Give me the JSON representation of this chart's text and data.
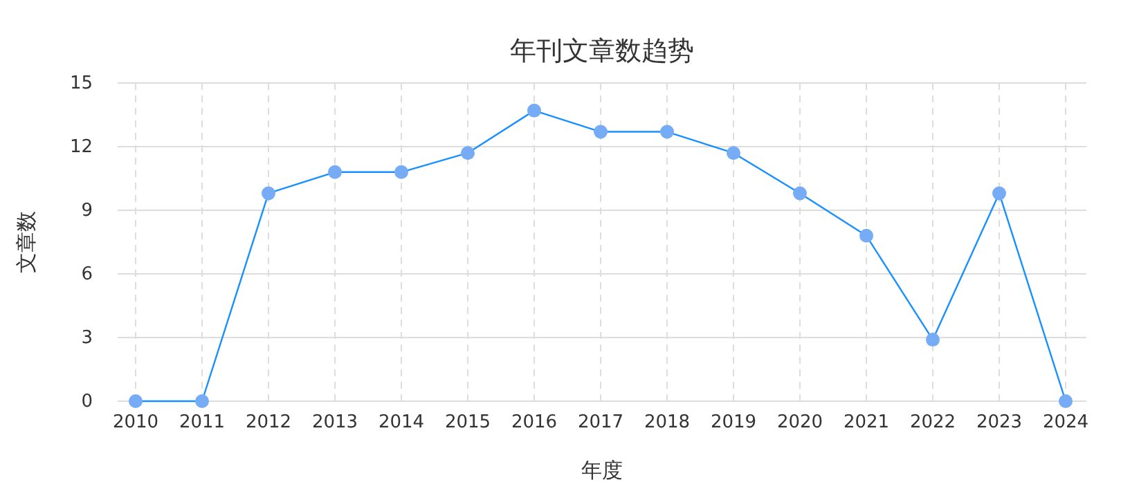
{
  "chart_data": {
    "type": "line",
    "title": "年刊文章数趋势",
    "xlabel": "年度",
    "ylabel": "文章数",
    "categories": [
      "2010",
      "2011",
      "2012",
      "2013",
      "2014",
      "2015",
      "2016",
      "2017",
      "2018",
      "2019",
      "2020",
      "2021",
      "2022",
      "2023",
      "2024"
    ],
    "series": [
      {
        "color": "#1890ff",
        "values": [
          0,
          0,
          9.8,
          10.8,
          10.8,
          11.7,
          13.7,
          12.7,
          12.7,
          11.7,
          9.8,
          7.8,
          2.9,
          9.8,
          0
        ]
      }
    ],
    "ylim": [
      0,
      15
    ],
    "yticks": [
      0,
      3,
      6,
      9,
      12,
      15
    ],
    "grid": true,
    "marker": "circle",
    "line_style": "solid"
  }
}
